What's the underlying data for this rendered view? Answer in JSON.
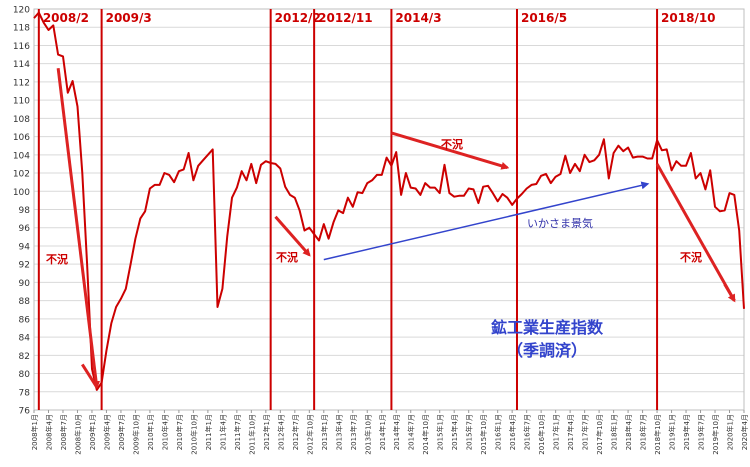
{
  "chart_data": {
    "type": "line",
    "title": "鉱工業生産指数",
    "subtitle": "（季調済）",
    "ylim": [
      76,
      120
    ],
    "yticks": [
      76,
      78,
      80,
      82,
      84,
      86,
      88,
      90,
      92,
      94,
      96,
      98,
      100,
      102,
      104,
      106,
      108,
      110,
      112,
      114,
      116,
      118,
      120
    ],
    "grid": true,
    "x_start": "2008-01",
    "x_end": "2020-04",
    "x_tick_labels": [
      "2008年1月",
      "2008年4月",
      "2008年7月",
      "2008年10月",
      "2009年1月",
      "2009年4月",
      "2009年7月",
      "2009年10月",
      "2010年1月",
      "2010年4月",
      "2010年7月",
      "2010年10月",
      "2011年1月",
      "2011年4月",
      "2011年7月",
      "2011年10月",
      "2012年1月",
      "2012年4月",
      "2012年7月",
      "2012年10月",
      "2013年1月",
      "2013年4月",
      "2013年7月",
      "2013年10月",
      "2014年1月",
      "2014年4月",
      "2014年7月",
      "2014年10月",
      "2015年1月",
      "2015年4月",
      "2015年7月",
      "2015年10月",
      "2016年1月",
      "2016年4月",
      "2016年7月",
      "2016年10月",
      "2017年1月",
      "2017年4月",
      "2017年7月",
      "2017年10月",
      "2018年1月",
      "2018年4月",
      "2018年7月",
      "2018年10月",
      "2019年1月",
      "2019年4月",
      "2019年7月",
      "2019年10月",
      "2020年1月",
      "2020年4月"
    ],
    "series": [
      {
        "color": "#cc0000",
        "values": [
          119.0,
          119.6,
          118.5,
          117.7,
          118.2,
          115.0,
          114.8,
          110.8,
          112.1,
          109.3,
          102.0,
          92.0,
          80.5,
          78.2,
          79.0,
          82.5,
          85.5,
          87.3,
          88.2,
          89.3,
          92.0,
          94.8,
          97.0,
          97.8,
          100.3,
          100.7,
          100.7,
          102.0,
          101.8,
          101.0,
          102.2,
          102.4,
          104.2,
          101.2,
          102.8,
          103.4,
          104.0,
          104.6,
          87.3,
          89.3,
          95.0,
          99.3,
          100.4,
          102.2,
          101.2,
          103.0,
          100.9,
          102.9,
          103.3,
          103.1,
          103.0,
          102.5,
          100.5,
          99.6,
          99.3,
          97.9,
          95.7,
          96.0,
          95.3,
          94.6,
          96.4,
          94.8,
          96.6,
          97.9,
          97.6,
          99.3,
          98.3,
          99.9,
          99.8,
          100.9,
          101.2,
          101.8,
          101.8,
          103.7,
          102.8,
          104.3,
          99.6,
          102.0,
          100.4,
          100.3,
          99.6,
          100.9,
          100.4,
          100.4,
          99.8,
          102.9,
          99.8,
          99.4,
          99.5,
          99.5,
          100.3,
          100.2,
          98.7,
          100.5,
          100.6,
          99.8,
          98.9,
          99.7,
          99.3,
          98.5,
          99.2,
          99.7,
          100.3,
          100.7,
          100.8,
          101.7,
          101.9,
          100.9,
          101.6,
          101.9,
          103.9,
          102.0,
          103.0,
          102.2,
          104.0,
          103.2,
          103.4,
          104.0,
          105.7,
          101.4,
          104.2,
          105.0,
          104.4,
          104.8,
          103.7,
          103.8,
          103.8,
          103.6,
          103.6,
          105.6,
          104.5,
          104.6,
          102.3,
          103.3,
          102.8,
          102.8,
          104.2,
          101.4,
          102.0,
          100.2,
          102.3,
          98.3,
          97.8,
          97.9,
          99.8,
          99.6,
          95.7,
          87.1
        ]
      }
    ],
    "events": [
      "2008/2",
      "2009/3",
      "2012/2",
      "2012/11",
      "2014/3",
      "2016/5",
      "2018/10"
    ],
    "annotations": {
      "recession": "不況",
      "izanami": "いかさま景気"
    }
  }
}
